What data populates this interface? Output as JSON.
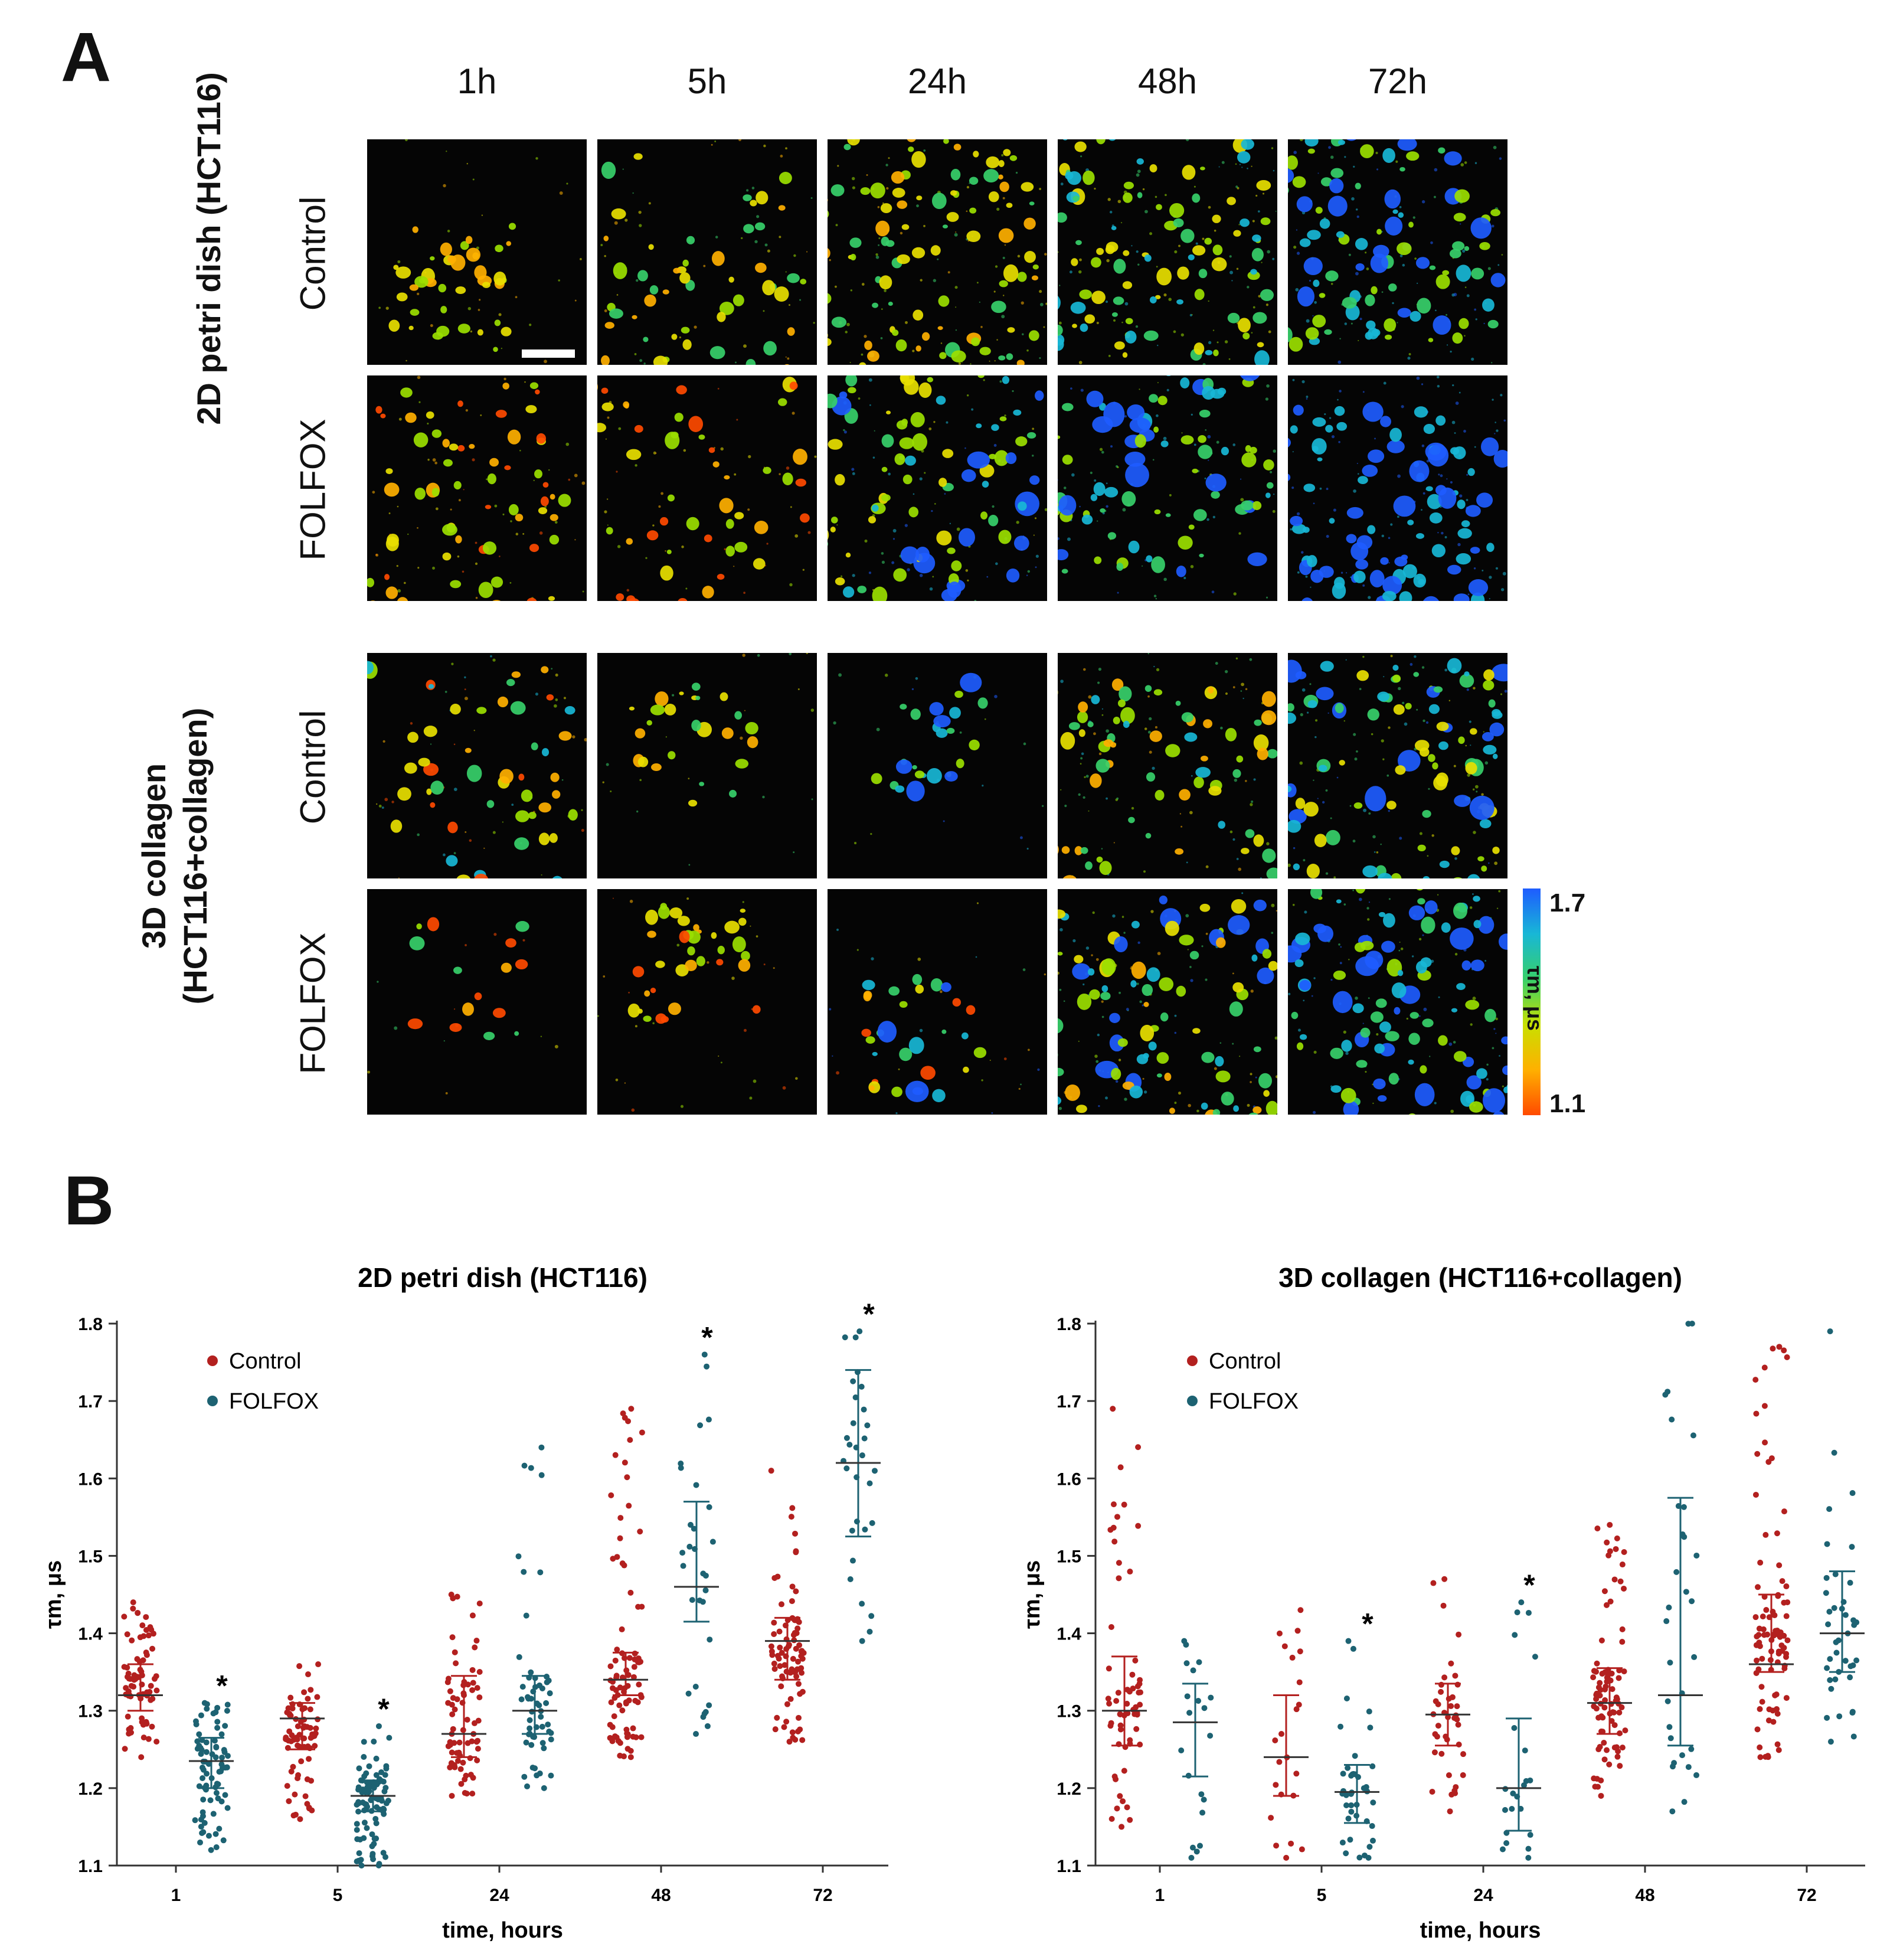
{
  "panel_a": {
    "letter": "A",
    "timepoints": [
      "1h",
      "5h",
      "24h",
      "48h",
      "72h"
    ],
    "groups": [
      {
        "label": "2D petri dish (HCT116)",
        "rows": [
          "Control",
          "FOLFOX"
        ]
      },
      {
        "label_line1": "3D collagen",
        "label_line2": "(HCT116+collagen)",
        "rows": [
          "Control",
          "FOLFOX"
        ]
      }
    ],
    "colorbar": {
      "max": "1.7",
      "min": "1.1",
      "label": "τm, μs",
      "colors": [
        "#1e5cff",
        "#18b7d6",
        "#37d06a",
        "#c8e000",
        "#ffb000",
        "#ff4a00"
      ]
    }
  },
  "panel_b": {
    "letter": "B",
    "legend": {
      "control": "Control",
      "folfox": "FOLFOX"
    },
    "colors": {
      "control": "#b3201f",
      "folfox": "#1d6272"
    },
    "significance_marker": "*"
  },
  "chart_data": [
    {
      "type": "scatter",
      "title": "2D petri dish (HCT116)",
      "xlabel": "time, hours",
      "ylabel": "τm, μs",
      "categories": [
        "1",
        "5",
        "24",
        "48",
        "72"
      ],
      "ylim": [
        1.1,
        1.8
      ],
      "yticks": [
        "1.1",
        "1.2",
        "1.3",
        "1.4",
        "1.5",
        "1.6",
        "1.7",
        "1.8"
      ],
      "legend_position": "top-left",
      "series": [
        {
          "name": "Control",
          "median": [
            1.32,
            1.29,
            1.27,
            1.34,
            1.39
          ],
          "q1": [
            1.3,
            1.25,
            1.24,
            1.32,
            1.34
          ],
          "q3": [
            1.36,
            1.31,
            1.345,
            1.375,
            1.42
          ],
          "min": [
            1.24,
            1.16,
            1.19,
            1.24,
            1.26
          ],
          "max": [
            1.44,
            1.36,
            1.45,
            1.69,
            1.61
          ],
          "n": [
            75,
            75,
            70,
            85,
            80
          ]
        },
        {
          "name": "FOLFOX",
          "median": [
            1.235,
            1.19,
            1.3,
            1.46,
            1.62
          ],
          "q1": [
            1.2,
            1.17,
            1.27,
            1.415,
            1.525
          ],
          "q3": [
            1.265,
            1.21,
            1.345,
            1.57,
            1.74
          ],
          "min": [
            1.12,
            1.1,
            1.2,
            1.27,
            1.39
          ],
          "max": [
            1.31,
            1.28,
            1.64,
            1.76,
            1.79
          ],
          "n": [
            80,
            95,
            55,
            30,
            30
          ],
          "significant": [
            true,
            true,
            false,
            true,
            true
          ]
        }
      ]
    },
    {
      "type": "scatter",
      "title": "3D collagen (HCT116+collagen)",
      "xlabel": "time, hours",
      "ylabel": "τm, μs",
      "categories": [
        "1",
        "5",
        "24",
        "48",
        "72"
      ],
      "ylim": [
        1.1,
        1.8
      ],
      "yticks": [
        "1.1",
        "1.2",
        "1.3",
        "1.4",
        "1.5",
        "1.6",
        "1.7",
        "1.8"
      ],
      "legend_position": "top-left",
      "series": [
        {
          "name": "Control",
          "median": [
            1.3,
            1.24,
            1.295,
            1.31,
            1.36
          ],
          "q1": [
            1.255,
            1.19,
            1.255,
            1.27,
            1.35
          ],
          "q3": [
            1.37,
            1.32,
            1.335,
            1.355,
            1.45
          ],
          "min": [
            1.15,
            1.11,
            1.17,
            1.19,
            1.24
          ],
          "max": [
            1.69,
            1.43,
            1.47,
            1.54,
            1.77
          ],
          "n": [
            60,
            22,
            40,
            85,
            90
          ]
        },
        {
          "name": "FOLFOX",
          "median": [
            1.285,
            1.195,
            1.2,
            1.32,
            1.4
          ],
          "q1": [
            1.215,
            1.155,
            1.145,
            1.255,
            1.35
          ],
          "q3": [
            1.335,
            1.23,
            1.29,
            1.575,
            1.48
          ],
          "min": [
            1.11,
            1.11,
            1.11,
            1.17,
            1.26
          ],
          "max": [
            1.39,
            1.39,
            1.44,
            1.8,
            1.79
          ],
          "n": [
            20,
            40,
            22,
            30,
            40
          ],
          "significant": [
            false,
            true,
            true,
            false,
            false
          ]
        }
      ]
    }
  ]
}
